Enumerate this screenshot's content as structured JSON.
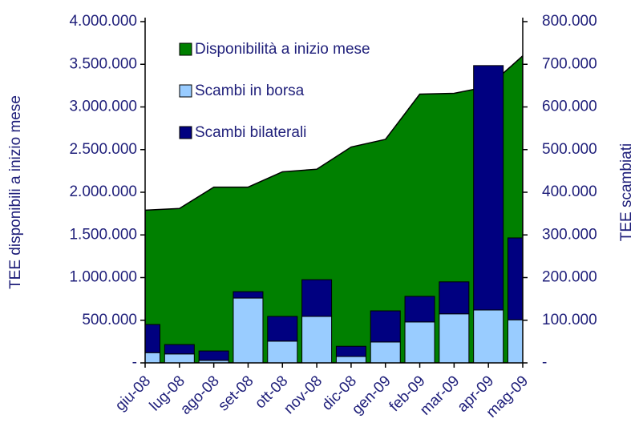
{
  "chart_data": {
    "type": "area-bar",
    "ylabel": "TEE disponibili a inizio mese",
    "y2label": "TEE scambiati",
    "categories": [
      "giu-08",
      "lug-08",
      "ago-08",
      "set-08",
      "ott-08",
      "nov-08",
      "dic-08",
      "gen-09",
      "feb-09",
      "mar-09",
      "apr-09",
      "mag-09"
    ],
    "series": [
      {
        "name": "Disponibilità a inizio mese",
        "color": "#008000",
        "kind": "area",
        "axis": "y",
        "values": [
          1790000,
          1810000,
          2060000,
          2060000,
          2240000,
          2270000,
          2530000,
          2620000,
          3150000,
          3160000,
          3240000,
          3600000
        ]
      },
      {
        "name": "Scambi in borsa",
        "color": "#99ccff",
        "kind": "bar",
        "axis": "y2",
        "values": [
          24000,
          21000,
          6000,
          152000,
          51000,
          109000,
          15000,
          49000,
          96000,
          115000,
          124000,
          101000
        ]
      },
      {
        "name": "Scambi bilaterali",
        "color": "#000080",
        "kind": "bar",
        "axis": "y2",
        "values": [
          66000,
          22000,
          22000,
          15000,
          58000,
          86000,
          24000,
          73000,
          60000,
          75000,
          573000,
          192000
        ]
      }
    ],
    "ylim": [
      0,
      4000000
    ],
    "yticks": [
      {
        "value": 0,
        "label": "-"
      },
      {
        "value": 500000,
        "label": "500.000"
      },
      {
        "value": 1000000,
        "label": "1.000.000"
      },
      {
        "value": 1500000,
        "label": "1.500.000"
      },
      {
        "value": 2000000,
        "label": "2.000.000"
      },
      {
        "value": 2500000,
        "label": "2.500.000"
      },
      {
        "value": 3000000,
        "label": "3.000.000"
      },
      {
        "value": 3500000,
        "label": "3.500.000"
      },
      {
        "value": 4000000,
        "label": "4.000.000"
      }
    ],
    "y2lim": [
      0,
      800000
    ],
    "y2ticks": [
      {
        "value": 0,
        "label": "-"
      },
      {
        "value": 100000,
        "label": "100.000"
      },
      {
        "value": 200000,
        "label": "200.000"
      },
      {
        "value": 300000,
        "label": "300.000"
      },
      {
        "value": 400000,
        "label": "400.000"
      },
      {
        "value": 500000,
        "label": "500.000"
      },
      {
        "value": 600000,
        "label": "600.000"
      },
      {
        "value": 700000,
        "label": "700.000"
      },
      {
        "value": 800000,
        "label": "800.000"
      }
    ],
    "grid": false
  }
}
